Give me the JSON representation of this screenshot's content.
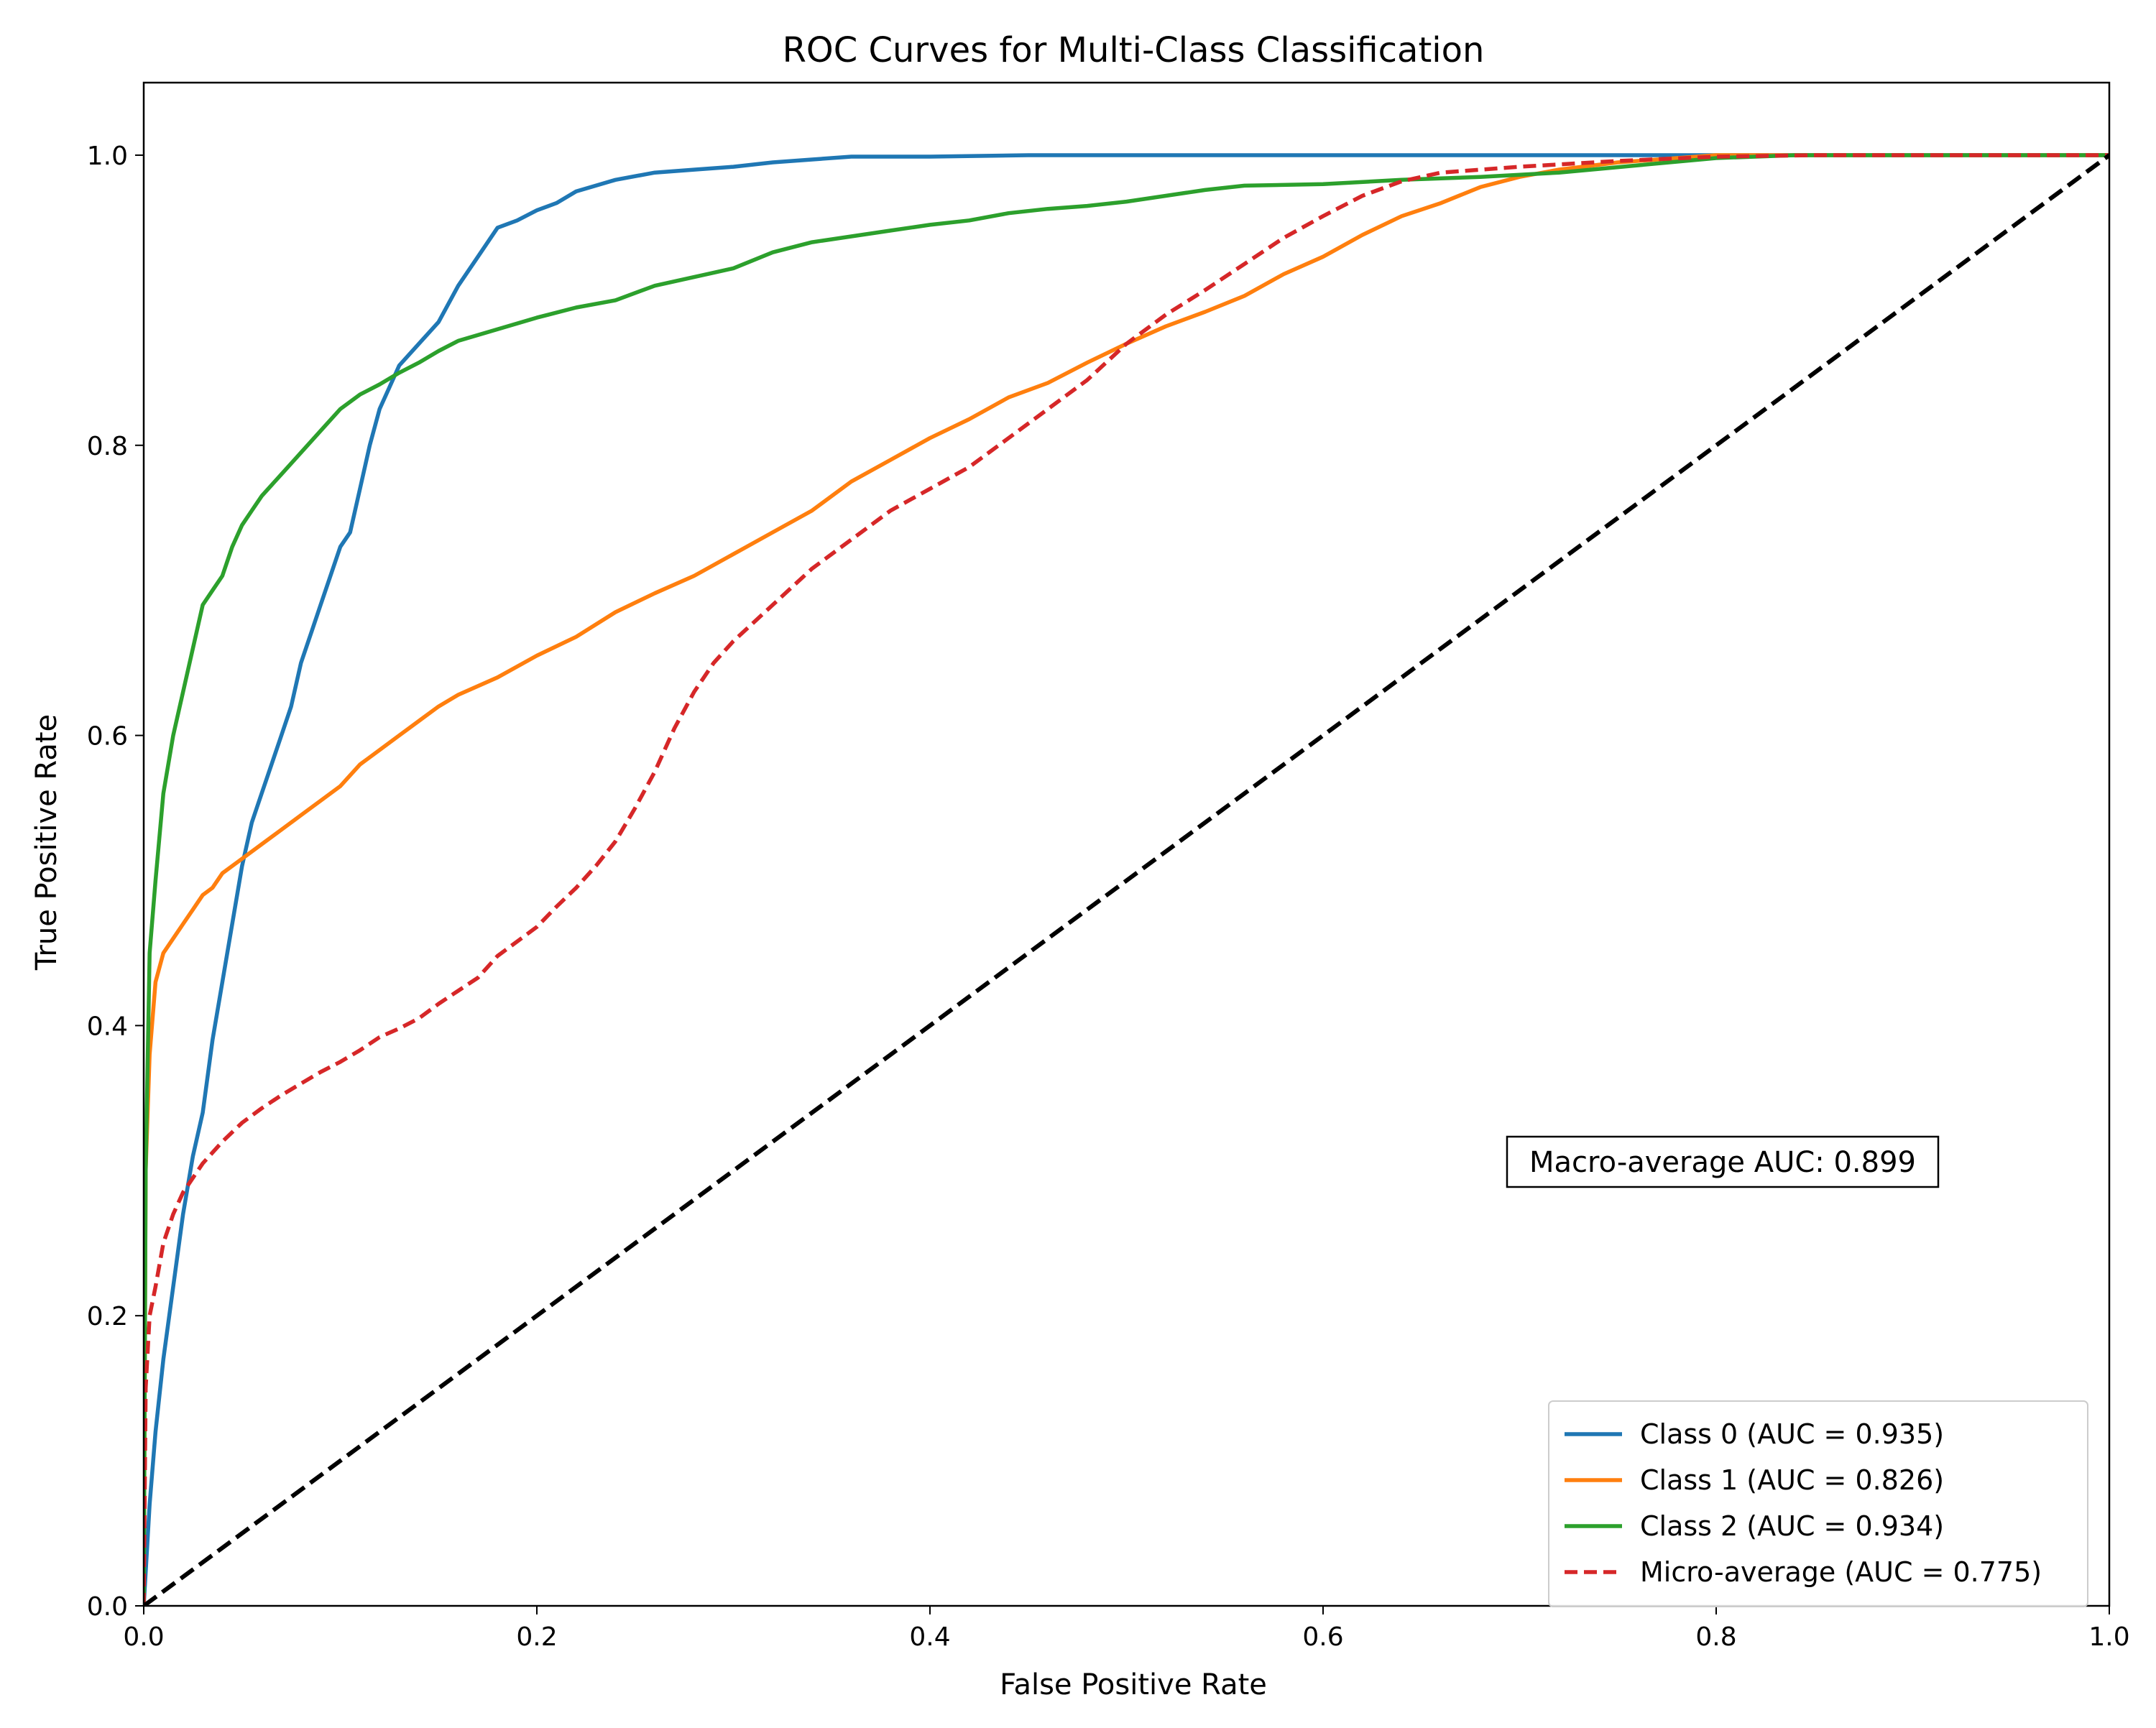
{
  "chart_data": {
    "type": "line",
    "title": "ROC Curves for Multi-Class Classification",
    "xlabel": "False Positive Rate",
    "ylabel": "True Positive Rate",
    "xlim": [
      0.0,
      1.0
    ],
    "ylim": [
      0.0,
      1.05
    ],
    "xticks": [
      0.0,
      0.2,
      0.4,
      0.6,
      0.8,
      1.0
    ],
    "yticks": [
      0.0,
      0.2,
      0.4,
      0.6,
      0.8,
      1.0
    ],
    "xtick_labels": [
      "0.0",
      "0.2",
      "0.4",
      "0.6",
      "0.8",
      "1.0"
    ],
    "ytick_labels": [
      "0.0",
      "0.2",
      "0.4",
      "0.6",
      "0.8",
      "1.0"
    ],
    "grid": false,
    "legend_position": "lower-right",
    "annotation": "Macro-average AUC: 0.899",
    "series": [
      {
        "name": "Class 0 (AUC = 0.935)",
        "color": "#1f77b4",
        "dash": "solid",
        "points": [
          [
            0.0,
            0.0
          ],
          [
            0.003,
            0.07
          ],
          [
            0.006,
            0.12
          ],
          [
            0.01,
            0.17
          ],
          [
            0.015,
            0.22
          ],
          [
            0.02,
            0.27
          ],
          [
            0.025,
            0.31
          ],
          [
            0.03,
            0.34
          ],
          [
            0.035,
            0.39
          ],
          [
            0.04,
            0.43
          ],
          [
            0.045,
            0.47
          ],
          [
            0.05,
            0.51
          ],
          [
            0.055,
            0.54
          ],
          [
            0.06,
            0.56
          ],
          [
            0.065,
            0.58
          ],
          [
            0.07,
            0.6
          ],
          [
            0.075,
            0.62
          ],
          [
            0.08,
            0.65
          ],
          [
            0.085,
            0.67
          ],
          [
            0.09,
            0.69
          ],
          [
            0.095,
            0.71
          ],
          [
            0.1,
            0.73
          ],
          [
            0.105,
            0.74
          ],
          [
            0.11,
            0.77
          ],
          [
            0.115,
            0.8
          ],
          [
            0.12,
            0.825
          ],
          [
            0.125,
            0.84
          ],
          [
            0.13,
            0.855
          ],
          [
            0.14,
            0.87
          ],
          [
            0.15,
            0.885
          ],
          [
            0.16,
            0.91
          ],
          [
            0.17,
            0.93
          ],
          [
            0.18,
            0.95
          ],
          [
            0.19,
            0.955
          ],
          [
            0.2,
            0.962
          ],
          [
            0.21,
            0.967
          ],
          [
            0.22,
            0.975
          ],
          [
            0.24,
            0.983
          ],
          [
            0.26,
            0.988
          ],
          [
            0.28,
            0.99
          ],
          [
            0.3,
            0.992
          ],
          [
            0.32,
            0.995
          ],
          [
            0.34,
            0.997
          ],
          [
            0.36,
            0.999
          ],
          [
            0.4,
            0.999
          ],
          [
            0.45,
            1.0
          ],
          [
            0.6,
            1.0
          ],
          [
            0.8,
            1.0
          ],
          [
            1.0,
            1.0
          ]
        ]
      },
      {
        "name": "Class 1 (AUC = 0.826)",
        "color": "#ff7f0e",
        "dash": "solid",
        "points": [
          [
            0.0,
            0.0
          ],
          [
            0.001,
            0.3
          ],
          [
            0.003,
            0.38
          ],
          [
            0.006,
            0.43
          ],
          [
            0.01,
            0.45
          ],
          [
            0.015,
            0.46
          ],
          [
            0.02,
            0.47
          ],
          [
            0.025,
            0.48
          ],
          [
            0.03,
            0.49
          ],
          [
            0.035,
            0.495
          ],
          [
            0.04,
            0.505
          ],
          [
            0.05,
            0.515
          ],
          [
            0.06,
            0.525
          ],
          [
            0.07,
            0.535
          ],
          [
            0.08,
            0.545
          ],
          [
            0.09,
            0.555
          ],
          [
            0.1,
            0.565
          ],
          [
            0.11,
            0.58
          ],
          [
            0.12,
            0.59
          ],
          [
            0.13,
            0.6
          ],
          [
            0.14,
            0.61
          ],
          [
            0.15,
            0.62
          ],
          [
            0.16,
            0.628
          ],
          [
            0.18,
            0.64
          ],
          [
            0.2,
            0.655
          ],
          [
            0.22,
            0.668
          ],
          [
            0.24,
            0.685
          ],
          [
            0.26,
            0.698
          ],
          [
            0.28,
            0.71
          ],
          [
            0.3,
            0.725
          ],
          [
            0.32,
            0.74
          ],
          [
            0.34,
            0.755
          ],
          [
            0.36,
            0.775
          ],
          [
            0.38,
            0.79
          ],
          [
            0.4,
            0.805
          ],
          [
            0.42,
            0.818
          ],
          [
            0.44,
            0.833
          ],
          [
            0.46,
            0.843
          ],
          [
            0.48,
            0.857
          ],
          [
            0.5,
            0.87
          ],
          [
            0.52,
            0.882
          ],
          [
            0.54,
            0.892
          ],
          [
            0.56,
            0.903
          ],
          [
            0.58,
            0.918
          ],
          [
            0.6,
            0.93
          ],
          [
            0.62,
            0.945
          ],
          [
            0.64,
            0.958
          ],
          [
            0.66,
            0.967
          ],
          [
            0.68,
            0.978
          ],
          [
            0.7,
            0.985
          ],
          [
            0.72,
            0.99
          ],
          [
            0.75,
            0.995
          ],
          [
            0.8,
            1.0
          ],
          [
            1.0,
            1.0
          ]
        ]
      },
      {
        "name": "Class 2 (AUC = 0.934)",
        "color": "#2ca02c",
        "dash": "solid",
        "points": [
          [
            0.0,
            0.0
          ],
          [
            0.001,
            0.3
          ],
          [
            0.003,
            0.45
          ],
          [
            0.006,
            0.5
          ],
          [
            0.01,
            0.56
          ],
          [
            0.015,
            0.6
          ],
          [
            0.02,
            0.63
          ],
          [
            0.025,
            0.66
          ],
          [
            0.03,
            0.69
          ],
          [
            0.035,
            0.7
          ],
          [
            0.04,
            0.71
          ],
          [
            0.045,
            0.73
          ],
          [
            0.05,
            0.745
          ],
          [
            0.055,
            0.755
          ],
          [
            0.06,
            0.765
          ],
          [
            0.07,
            0.78
          ],
          [
            0.08,
            0.795
          ],
          [
            0.09,
            0.81
          ],
          [
            0.1,
            0.825
          ],
          [
            0.11,
            0.835
          ],
          [
            0.12,
            0.842
          ],
          [
            0.13,
            0.85
          ],
          [
            0.14,
            0.857
          ],
          [
            0.15,
            0.865
          ],
          [
            0.16,
            0.872
          ],
          [
            0.18,
            0.88
          ],
          [
            0.2,
            0.888
          ],
          [
            0.22,
            0.895
          ],
          [
            0.24,
            0.9
          ],
          [
            0.26,
            0.91
          ],
          [
            0.28,
            0.916
          ],
          [
            0.3,
            0.922
          ],
          [
            0.32,
            0.933
          ],
          [
            0.34,
            0.94
          ],
          [
            0.36,
            0.944
          ],
          [
            0.38,
            0.948
          ],
          [
            0.4,
            0.952
          ],
          [
            0.42,
            0.955
          ],
          [
            0.44,
            0.96
          ],
          [
            0.46,
            0.963
          ],
          [
            0.48,
            0.965
          ],
          [
            0.5,
            0.968
          ],
          [
            0.52,
            0.972
          ],
          [
            0.54,
            0.976
          ],
          [
            0.56,
            0.979
          ],
          [
            0.6,
            0.98
          ],
          [
            0.64,
            0.983
          ],
          [
            0.68,
            0.985
          ],
          [
            0.72,
            0.988
          ],
          [
            0.76,
            0.993
          ],
          [
            0.8,
            0.998
          ],
          [
            0.84,
            1.0
          ],
          [
            1.0,
            1.0
          ]
        ]
      },
      {
        "name": "Micro-average (AUC = 0.775)",
        "color": "#d62728",
        "dash": "dashed",
        "points": [
          [
            0.0,
            0.0
          ],
          [
            0.001,
            0.15
          ],
          [
            0.003,
            0.2
          ],
          [
            0.006,
            0.22
          ],
          [
            0.01,
            0.25
          ],
          [
            0.015,
            0.27
          ],
          [
            0.02,
            0.285
          ],
          [
            0.03,
            0.305
          ],
          [
            0.04,
            0.32
          ],
          [
            0.05,
            0.333
          ],
          [
            0.06,
            0.343
          ],
          [
            0.07,
            0.352
          ],
          [
            0.08,
            0.36
          ],
          [
            0.09,
            0.368
          ],
          [
            0.1,
            0.375
          ],
          [
            0.11,
            0.383
          ],
          [
            0.12,
            0.392
          ],
          [
            0.13,
            0.398
          ],
          [
            0.14,
            0.405
          ],
          [
            0.15,
            0.415
          ],
          [
            0.16,
            0.424
          ],
          [
            0.17,
            0.433
          ],
          [
            0.18,
            0.448
          ],
          [
            0.2,
            0.468
          ],
          [
            0.21,
            0.482
          ],
          [
            0.22,
            0.495
          ],
          [
            0.23,
            0.51
          ],
          [
            0.24,
            0.527
          ],
          [
            0.25,
            0.55
          ],
          [
            0.26,
            0.575
          ],
          [
            0.27,
            0.605
          ],
          [
            0.28,
            0.63
          ],
          [
            0.29,
            0.65
          ],
          [
            0.3,
            0.665
          ],
          [
            0.32,
            0.69
          ],
          [
            0.34,
            0.715
          ],
          [
            0.36,
            0.735
          ],
          [
            0.38,
            0.755
          ],
          [
            0.4,
            0.77
          ],
          [
            0.42,
            0.785
          ],
          [
            0.44,
            0.805
          ],
          [
            0.46,
            0.825
          ],
          [
            0.48,
            0.845
          ],
          [
            0.5,
            0.87
          ],
          [
            0.52,
            0.89
          ],
          [
            0.54,
            0.907
          ],
          [
            0.56,
            0.925
          ],
          [
            0.58,
            0.943
          ],
          [
            0.6,
            0.958
          ],
          [
            0.62,
            0.972
          ],
          [
            0.64,
            0.982
          ],
          [
            0.66,
            0.988
          ],
          [
            0.7,
            0.992
          ],
          [
            0.75,
            0.996
          ],
          [
            0.8,
            0.999
          ],
          [
            0.85,
            1.0
          ],
          [
            1.0,
            1.0
          ]
        ]
      },
      {
        "name": "",
        "color": "#000000",
        "dash": "dashed",
        "points": [
          [
            0.0,
            0.0
          ],
          [
            1.0,
            1.0
          ]
        ]
      }
    ]
  }
}
